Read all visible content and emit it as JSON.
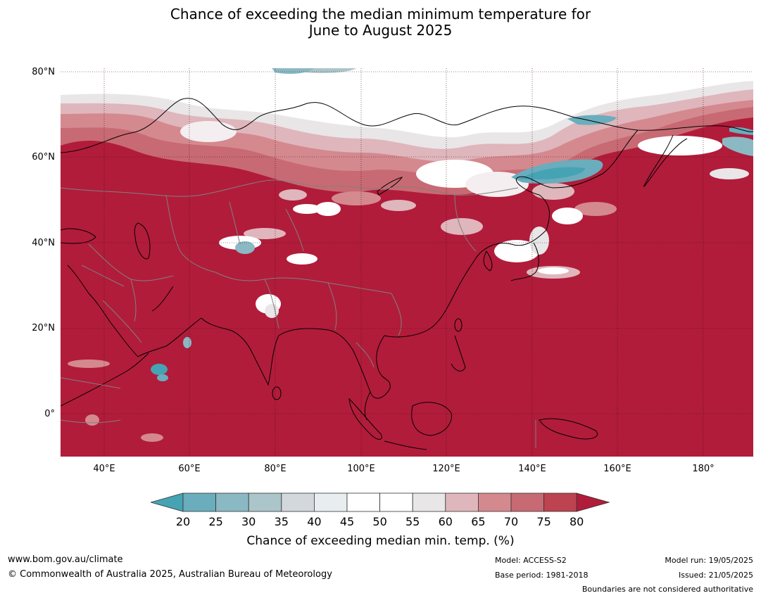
{
  "title": {
    "line1": "Chance of exceeding the median minimum temperature for",
    "line2": "June to August 2025"
  },
  "map": {
    "region": "Asia",
    "lat_labels": [
      "80°N",
      "60°N",
      "40°N",
      "20°N",
      "0°"
    ],
    "lon_labels": [
      "40°E",
      "60°E",
      "80°E",
      "100°E",
      "120°E",
      "140°E",
      "160°E",
      "180°"
    ],
    "dominant_category": "80",
    "colors": {
      "ocean_fill": "#b11c3a",
      "land_border": "#000000",
      "country_border": "#808080",
      "grid": "#3a0a14"
    }
  },
  "colorbar": {
    "ticks": [
      "20",
      "25",
      "30",
      "35",
      "40",
      "45",
      "50",
      "55",
      "60",
      "65",
      "70",
      "75",
      "80"
    ],
    "colors": [
      "#46a3b4",
      "#6aadbc",
      "#8ab9c4",
      "#abc5ca",
      "#d2d8dc",
      "#e8eef0",
      "#ffffff",
      "#ffffff",
      "#e9e6e8",
      "#dfb6bc",
      "#d4898f",
      "#c86a73",
      "#bc434f",
      "#b11c3a"
    ],
    "label": "Chance of exceeding median min. temp. (%)"
  },
  "footer": {
    "website": "www.bom.gov.au/climate",
    "copyright": "© Commonwealth of Australia 2025, Australian Bureau of Meteorology",
    "model": "Model: ACCESS-S2",
    "base_period": "Base period: 1981-2018",
    "model_run": "Model run: 19/05/2025",
    "issued": "Issued: 21/05/2025",
    "disclaimer": "Boundaries are not considered authoritative"
  }
}
